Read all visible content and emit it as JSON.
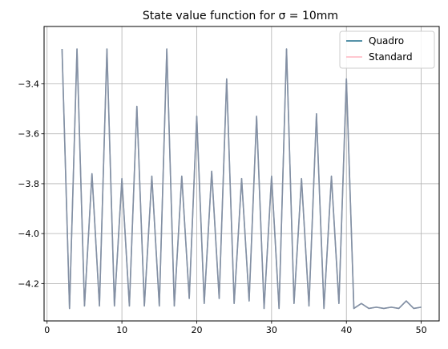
{
  "chart_data": {
    "type": "line",
    "title": "State value function for σ = 10mm",
    "xlabel": "",
    "ylabel": "",
    "xlim": [
      -0.4,
      52.4
    ],
    "ylim": [
      -4.35,
      -3.17
    ],
    "x_ticks": [
      0,
      10,
      20,
      30,
      40,
      50
    ],
    "x_tick_labels": [
      "0",
      "10",
      "20",
      "30",
      "40",
      "50"
    ],
    "y_ticks": [
      -4.2,
      -4.0,
      -3.8,
      -3.6,
      -3.4
    ],
    "y_tick_labels": [
      "−4.2",
      "−4.0",
      "−3.8",
      "−3.6",
      "−3.4"
    ],
    "grid": true,
    "legend_position": "top-right",
    "x": [
      2,
      3,
      4,
      5,
      6,
      7,
      8,
      9,
      10,
      11,
      12,
      13,
      14,
      15,
      16,
      17,
      18,
      19,
      20,
      21,
      22,
      23,
      24,
      25,
      26,
      27,
      28,
      29,
      30,
      31,
      32,
      33,
      34,
      35,
      36,
      37,
      38,
      39,
      40,
      41,
      42,
      43,
      44,
      45,
      46,
      47,
      48,
      49,
      50
    ],
    "series": [
      {
        "name": "Quadro",
        "color": "#1f6f8b",
        "values": [
          -3.26,
          -4.3,
          -3.26,
          -4.29,
          -3.76,
          -4.29,
          -3.26,
          -4.29,
          -3.78,
          -4.29,
          -3.49,
          -4.29,
          -3.77,
          -4.29,
          -3.26,
          -4.29,
          -3.77,
          -4.26,
          -3.53,
          -4.28,
          -3.75,
          -4.26,
          -3.38,
          -4.28,
          -3.78,
          -4.27,
          -3.53,
          -4.3,
          -3.77,
          -4.3,
          -3.26,
          -4.28,
          -3.78,
          -4.29,
          -3.52,
          -4.3,
          -3.77,
          -4.28,
          -3.38,
          -4.3,
          -4.28,
          -4.3,
          -4.295,
          -4.3,
          -4.295,
          -4.3,
          -4.27,
          -4.3,
          -4.295
        ]
      },
      {
        "name": "Standard",
        "color": "#ffb6c1",
        "values": [
          -3.26,
          -4.3,
          -3.26,
          -4.29,
          -3.76,
          -4.29,
          -3.26,
          -4.29,
          -3.78,
          -4.29,
          -3.49,
          -4.29,
          -3.77,
          -4.29,
          -3.26,
          -4.29,
          -3.77,
          -4.26,
          -3.53,
          -4.28,
          -3.75,
          -4.26,
          -3.38,
          -4.28,
          -3.78,
          -4.27,
          -3.53,
          -4.3,
          -3.77,
          -4.3,
          -3.26,
          -4.28,
          -3.78,
          -4.29,
          -3.52,
          -4.3,
          -3.77,
          -4.28,
          -3.38,
          -4.3,
          -4.28,
          -4.3,
          -4.295,
          -4.3,
          -4.295,
          -4.3,
          -4.27,
          -4.3,
          -4.295
        ]
      }
    ]
  }
}
